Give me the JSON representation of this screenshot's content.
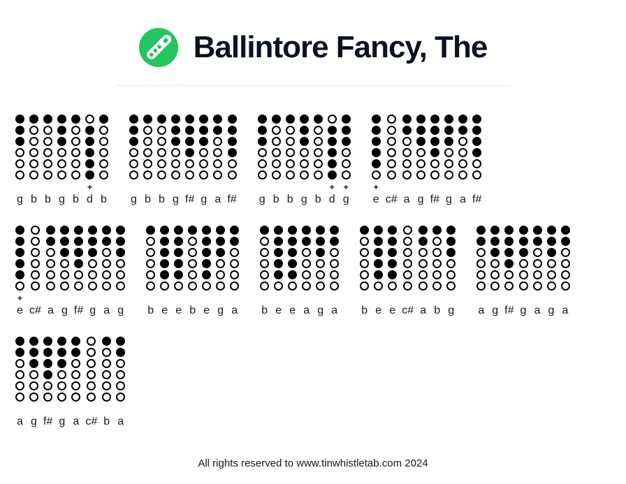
{
  "header": {
    "title": "Ballintore Fancy, The"
  },
  "symbols": {
    "octave_plus": "+"
  },
  "colors": {
    "accent_green": "#22c55e",
    "hole_black": "#000000",
    "text_dark": "#0c1222",
    "divider_gray": "#e7e8ea",
    "background": "#ffffff"
  },
  "tab": {
    "rows": [
      [
        {
          "notes": [
            {
              "label": "g",
              "holes": [
                1,
                1,
                1,
                0,
                0,
                0
              ],
              "plus": false
            },
            {
              "label": "b",
              "holes": [
                1,
                0,
                0,
                0,
                0,
                0
              ],
              "plus": false
            },
            {
              "label": "b",
              "holes": [
                1,
                0,
                0,
                0,
                0,
                0
              ],
              "plus": false
            },
            {
              "label": "g",
              "holes": [
                1,
                1,
                1,
                0,
                0,
                0
              ],
              "plus": false
            },
            {
              "label": "b",
              "holes": [
                1,
                0,
                0,
                0,
                0,
                0
              ],
              "plus": false
            },
            {
              "label": "d",
              "holes": [
                0,
                1,
                1,
                1,
                1,
                1
              ],
              "plus": true
            },
            {
              "label": "b",
              "holes": [
                1,
                0,
                0,
                0,
                0,
                0
              ],
              "plus": false
            }
          ]
        },
        {
          "notes": [
            {
              "label": "g",
              "holes": [
                1,
                1,
                1,
                0,
                0,
                0
              ],
              "plus": false
            },
            {
              "label": "b",
              "holes": [
                1,
                0,
                0,
                0,
                0,
                0
              ],
              "plus": false
            },
            {
              "label": "b",
              "holes": [
                1,
                0,
                0,
                0,
                0,
                0
              ],
              "plus": false
            },
            {
              "label": "g",
              "holes": [
                1,
                1,
                1,
                0,
                0,
                0
              ],
              "plus": false
            },
            {
              "label": "f#",
              "holes": [
                1,
                1,
                1,
                1,
                0,
                0
              ],
              "plus": false
            },
            {
              "label": "g",
              "holes": [
                1,
                1,
                1,
                0,
                0,
                0
              ],
              "plus": false
            },
            {
              "label": "a",
              "holes": [
                1,
                1,
                0,
                0,
                0,
                0
              ],
              "plus": false
            },
            {
              "label": "f#",
              "holes": [
                1,
                1,
                1,
                1,
                0,
                0
              ],
              "plus": false
            }
          ]
        },
        {
          "notes": [
            {
              "label": "g",
              "holes": [
                1,
                1,
                1,
                0,
                0,
                0
              ],
              "plus": false
            },
            {
              "label": "b",
              "holes": [
                1,
                0,
                0,
                0,
                0,
                0
              ],
              "plus": false
            },
            {
              "label": "b",
              "holes": [
                1,
                0,
                0,
                0,
                0,
                0
              ],
              "plus": false
            },
            {
              "label": "g",
              "holes": [
                1,
                1,
                1,
                0,
                0,
                0
              ],
              "plus": false
            },
            {
              "label": "b",
              "holes": [
                1,
                0,
                0,
                0,
                0,
                0
              ],
              "plus": false
            },
            {
              "label": "d",
              "holes": [
                0,
                1,
                1,
                1,
                1,
                1
              ],
              "plus": true
            },
            {
              "label": "g",
              "holes": [
                1,
                1,
                1,
                0,
                0,
                0
              ],
              "plus": true
            }
          ]
        },
        {
          "notes": [
            {
              "label": "e",
              "holes": [
                1,
                1,
                1,
                1,
                1,
                0
              ],
              "plus": true
            },
            {
              "label": "c#",
              "holes": [
                0,
                0,
                0,
                0,
                0,
                0
              ],
              "plus": false
            },
            {
              "label": "a",
              "holes": [
                1,
                1,
                0,
                0,
                0,
                0
              ],
              "plus": false
            },
            {
              "label": "g",
              "holes": [
                1,
                1,
                1,
                0,
                0,
                0
              ],
              "plus": false
            },
            {
              "label": "f#",
              "holes": [
                1,
                1,
                1,
                1,
                0,
                0
              ],
              "plus": false
            },
            {
              "label": "g",
              "holes": [
                1,
                1,
                1,
                0,
                0,
                0
              ],
              "plus": false
            },
            {
              "label": "a",
              "holes": [
                1,
                1,
                0,
                0,
                0,
                0
              ],
              "plus": false
            },
            {
              "label": "f#",
              "holes": [
                1,
                1,
                1,
                1,
                0,
                0
              ],
              "plus": false
            }
          ]
        }
      ],
      [
        {
          "notes": [
            {
              "label": "e",
              "holes": [
                1,
                1,
                1,
                1,
                1,
                0
              ],
              "plus": true
            },
            {
              "label": "c#",
              "holes": [
                0,
                0,
                0,
                0,
                0,
                0
              ],
              "plus": false
            },
            {
              "label": "a",
              "holes": [
                1,
                1,
                0,
                0,
                0,
                0
              ],
              "plus": false
            },
            {
              "label": "g",
              "holes": [
                1,
                1,
                1,
                0,
                0,
                0
              ],
              "plus": false
            },
            {
              "label": "f#",
              "holes": [
                1,
                1,
                1,
                1,
                0,
                0
              ],
              "plus": false
            },
            {
              "label": "g",
              "holes": [
                1,
                1,
                1,
                0,
                0,
                0
              ],
              "plus": false
            },
            {
              "label": "a",
              "holes": [
                1,
                1,
                0,
                0,
                0,
                0
              ],
              "plus": false
            },
            {
              "label": "g",
              "holes": [
                1,
                1,
                1,
                0,
                0,
                0
              ],
              "plus": false
            }
          ]
        },
        {
          "notes": [
            {
              "label": "b",
              "holes": [
                1,
                0,
                0,
                0,
                0,
                0
              ],
              "plus": false
            },
            {
              "label": "e",
              "holes": [
                1,
                1,
                1,
                1,
                1,
                0
              ],
              "plus": false
            },
            {
              "label": "e",
              "holes": [
                1,
                1,
                1,
                1,
                1,
                0
              ],
              "plus": false
            },
            {
              "label": "b",
              "holes": [
                1,
                0,
                0,
                0,
                0,
                0
              ],
              "plus": false
            },
            {
              "label": "e",
              "holes": [
                1,
                1,
                1,
                1,
                1,
                0
              ],
              "plus": false
            },
            {
              "label": "g",
              "holes": [
                1,
                1,
                1,
                0,
                0,
                0
              ],
              "plus": false
            },
            {
              "label": "a",
              "holes": [
                1,
                1,
                0,
                0,
                0,
                0
              ],
              "plus": false
            }
          ]
        },
        {
          "notes": [
            {
              "label": "b",
              "holes": [
                1,
                0,
                0,
                0,
                0,
                0
              ],
              "plus": false
            },
            {
              "label": "e",
              "holes": [
                1,
                1,
                1,
                1,
                1,
                0
              ],
              "plus": false
            },
            {
              "label": "e",
              "holes": [
                1,
                1,
                1,
                1,
                1,
                0
              ],
              "plus": false
            },
            {
              "label": "a",
              "holes": [
                1,
                1,
                0,
                0,
                0,
                0
              ],
              "plus": false
            },
            {
              "label": "g",
              "holes": [
                1,
                1,
                1,
                0,
                0,
                0
              ],
              "plus": false
            },
            {
              "label": "a",
              "holes": [
                1,
                1,
                0,
                0,
                0,
                0
              ],
              "plus": false
            }
          ]
        },
        {
          "notes": [
            {
              "label": "b",
              "holes": [
                1,
                0,
                0,
                0,
                0,
                0
              ],
              "plus": false
            },
            {
              "label": "e",
              "holes": [
                1,
                1,
                1,
                1,
                1,
                0
              ],
              "plus": false
            },
            {
              "label": "e",
              "holes": [
                1,
                1,
                1,
                1,
                1,
                0
              ],
              "plus": false
            },
            {
              "label": "c#",
              "holes": [
                0,
                0,
                0,
                0,
                0,
                0
              ],
              "plus": false
            },
            {
              "label": "a",
              "holes": [
                1,
                1,
                0,
                0,
                0,
                0
              ],
              "plus": false
            },
            {
              "label": "b",
              "holes": [
                1,
                0,
                0,
                0,
                0,
                0
              ],
              "plus": false
            },
            {
              "label": "g",
              "holes": [
                1,
                1,
                1,
                0,
                0,
                0
              ],
              "plus": false
            }
          ]
        },
        {
          "notes": [
            {
              "label": "a",
              "holes": [
                1,
                1,
                0,
                0,
                0,
                0
              ],
              "plus": false
            },
            {
              "label": "g",
              "holes": [
                1,
                1,
                1,
                0,
                0,
                0
              ],
              "plus": false
            },
            {
              "label": "f#",
              "holes": [
                1,
                1,
                1,
                1,
                0,
                0
              ],
              "plus": false
            },
            {
              "label": "g",
              "holes": [
                1,
                1,
                1,
                0,
                0,
                0
              ],
              "plus": false
            },
            {
              "label": "a",
              "holes": [
                1,
                1,
                0,
                0,
                0,
                0
              ],
              "plus": false
            },
            {
              "label": "g",
              "holes": [
                1,
                1,
                1,
                0,
                0,
                0
              ],
              "plus": false
            },
            {
              "label": "a",
              "holes": [
                1,
                1,
                0,
                0,
                0,
                0
              ],
              "plus": false
            }
          ]
        }
      ],
      [
        {
          "notes": [
            {
              "label": "a",
              "holes": [
                1,
                1,
                0,
                0,
                0,
                0
              ],
              "plus": false
            },
            {
              "label": "g",
              "holes": [
                1,
                1,
                1,
                0,
                0,
                0
              ],
              "plus": false
            },
            {
              "label": "f#",
              "holes": [
                1,
                1,
                1,
                1,
                0,
                0
              ],
              "plus": false
            },
            {
              "label": "g",
              "holes": [
                1,
                1,
                1,
                0,
                0,
                0
              ],
              "plus": false
            },
            {
              "label": "a",
              "holes": [
                1,
                1,
                0,
                0,
                0,
                0
              ],
              "plus": false
            },
            {
              "label": "c#",
              "holes": [
                0,
                0,
                0,
                0,
                0,
                0
              ],
              "plus": false
            },
            {
              "label": "b",
              "holes": [
                1,
                0,
                0,
                0,
                0,
                0
              ],
              "plus": false
            },
            {
              "label": "a",
              "holes": [
                1,
                1,
                0,
                0,
                0,
                0
              ],
              "plus": false
            }
          ]
        }
      ]
    ]
  },
  "footer": {
    "text": "All rights reserved to www.tinwhistletab.com 2024"
  }
}
